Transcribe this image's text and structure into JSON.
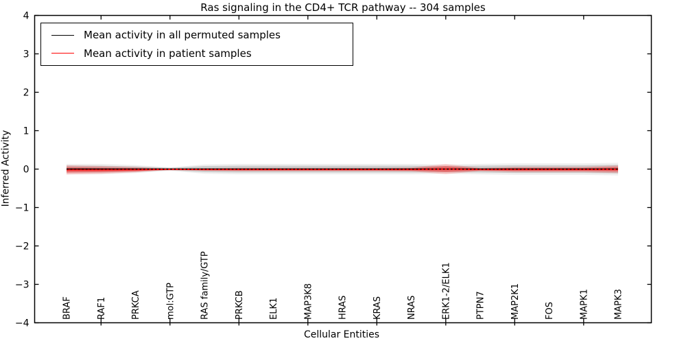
{
  "title": "Ras signaling in the CD4+ TCR pathway -- 304 samples",
  "legend": {
    "items": [
      {
        "label": "Mean activity in all permuted samples",
        "color": "#000000"
      },
      {
        "label": "Mean activity in patient samples",
        "color": "#ff0000"
      }
    ]
  },
  "chart_data": {
    "type": "line",
    "title": "Ras signaling in the CD4+ TCR pathway -- 304 samples",
    "xlabel": "Cellular Entities",
    "ylabel": "Inferred Activity",
    "ylim": [
      -4,
      4
    ],
    "yticks": [
      4,
      3,
      2,
      1,
      0,
      -1,
      -2,
      -3,
      -4
    ],
    "ytick_labels": [
      "4",
      "3",
      "2",
      "1",
      "0",
      "−1",
      "−2",
      "−3",
      "−4"
    ],
    "grid": false,
    "legend_position": "upper left",
    "categories": [
      "BRAF",
      "RAF1",
      "PRKCA",
      "mol:GTP",
      "RAS family/GTP",
      "PRKCB",
      "ELK1",
      "MAP3K8",
      "HRAS",
      "KRAS",
      "NRAS",
      "ERK1-2/ELK1",
      "PTPN7",
      "MAP2K1",
      "FOS",
      "MAPK1",
      "MAPK3"
    ],
    "series": [
      {
        "name": "Mean activity in all permuted samples",
        "color": "#000000",
        "band_color": "#999999",
        "values": [
          0,
          0,
          0,
          0,
          0,
          0,
          0,
          0,
          0,
          0,
          0,
          0,
          0,
          0,
          0,
          0,
          0
        ],
        "band_halfwidth": [
          0.09,
          0.09,
          0.07,
          0.03,
          0.08,
          0.09,
          0.09,
          0.09,
          0.09,
          0.09,
          0.09,
          0.08,
          0.09,
          0.1,
          0.1,
          0.1,
          0.11
        ]
      },
      {
        "name": "Mean activity in patient samples",
        "color": "#ff0000",
        "band_color": "#ff0000",
        "values": [
          -0.02,
          -0.02,
          -0.015,
          -0.005,
          -0.01,
          -0.01,
          -0.01,
          -0.01,
          -0.01,
          -0.01,
          -0.01,
          0,
          -0.01,
          -0.01,
          -0.01,
          -0.01,
          -0.005
        ],
        "band_halfwidth": [
          0.12,
          0.1,
          0.07,
          0.015,
          0.035,
          0.045,
          0.045,
          0.045,
          0.045,
          0.045,
          0.055,
          0.13,
          0.045,
          0.07,
          0.07,
          0.07,
          0.1
        ]
      }
    ]
  }
}
